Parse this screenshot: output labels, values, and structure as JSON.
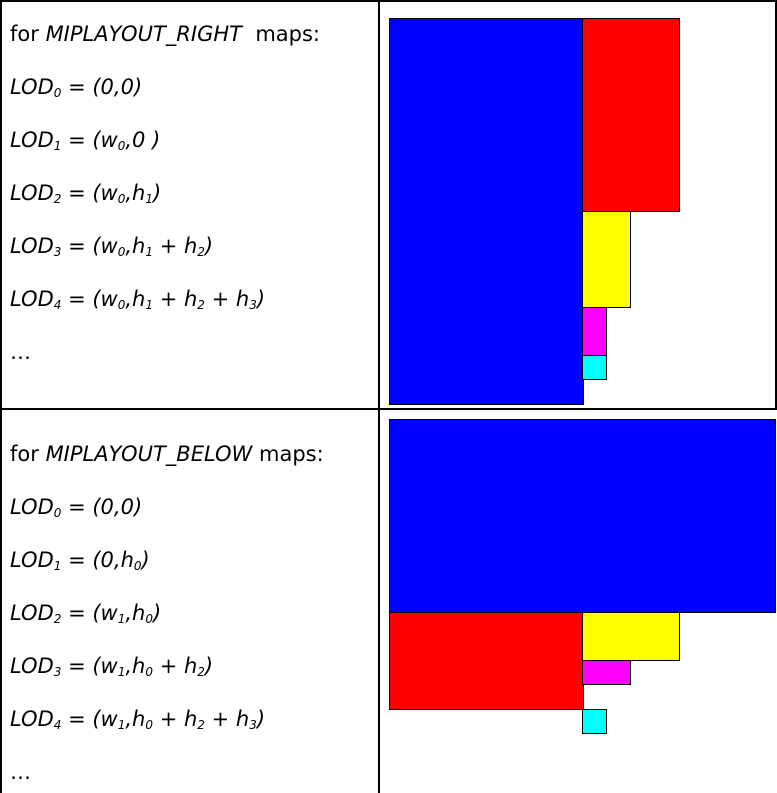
{
  "rows": [
    {
      "header_prefix": "for ",
      "header_name": "MIPLAYOUT_RIGHT",
      "header_suffix": "  maps:",
      "lines": [
        {
          "lod": "LOD",
          "sub": "0",
          "expr": " = (0,0)"
        },
        {
          "lod": "LOD",
          "sub": "1",
          "expr": " = (w",
          "parts": [
            {
              "t": " = (w"
            },
            {
              "s": "0"
            },
            {
              "t": ",0 )"
            }
          ]
        },
        {
          "lod": "LOD",
          "sub": "2",
          "parts": [
            {
              "t": " = (w"
            },
            {
              "s": "0"
            },
            {
              "t": ",h"
            },
            {
              "s": "1"
            },
            {
              "t": ")"
            }
          ]
        },
        {
          "lod": "LOD",
          "sub": "3",
          "parts": [
            {
              "t": " = (w"
            },
            {
              "s": "0"
            },
            {
              "t": ",h"
            },
            {
              "s": "1"
            },
            {
              "t": " + h"
            },
            {
              "s": "2"
            },
            {
              "t": ")"
            }
          ]
        },
        {
          "lod": "LOD",
          "sub": "4",
          "parts": [
            {
              "t": " = (w"
            },
            {
              "s": "0"
            },
            {
              "t": ",h"
            },
            {
              "s": "1"
            },
            {
              "t": " + h"
            },
            {
              "s": "2"
            },
            {
              "t": " + h"
            },
            {
              "s": "3"
            },
            {
              "t": ")"
            }
          ]
        }
      ],
      "ellipsis": "…"
    },
    {
      "header_prefix": "for ",
      "header_name": "MIPLAYOUT_BELOW",
      "header_suffix": " maps:",
      "lines": [
        {
          "lod": "LOD",
          "sub": "0",
          "parts": [
            {
              "t": " = (0,0)"
            }
          ]
        },
        {
          "lod": "LOD",
          "sub": "1",
          "parts": [
            {
              "t": " = (0,h"
            },
            {
              "s": "0"
            },
            {
              "t": ")"
            }
          ]
        },
        {
          "lod": "LOD",
          "sub": "2",
          "parts": [
            {
              "t": " = (w"
            },
            {
              "s": "1"
            },
            {
              "t": ",h"
            },
            {
              "s": "0"
            },
            {
              "t": ")"
            }
          ]
        },
        {
          "lod": "LOD",
          "sub": "3",
          "parts": [
            {
              "t": " = (w"
            },
            {
              "s": "1"
            },
            {
              "t": ",h"
            },
            {
              "s": "0"
            },
            {
              "t": " + h"
            },
            {
              "s": "2"
            },
            {
              "t": ")"
            }
          ]
        },
        {
          "lod": "LOD",
          "sub": "4",
          "parts": [
            {
              "t": " = (w"
            },
            {
              "s": "1"
            },
            {
              "t": ",h"
            },
            {
              "s": "0"
            },
            {
              "t": " + h"
            },
            {
              "s": "2"
            },
            {
              "t": " + h"
            },
            {
              "s": "3"
            },
            {
              "t": ")"
            }
          ]
        }
      ],
      "ellipsis": "…"
    }
  ],
  "colors": {
    "lod0": "#0000ff",
    "lod1": "#ff0000",
    "lod2": "#ffff00",
    "lod3": "#ff00ff",
    "lod4": "#00ffff"
  }
}
